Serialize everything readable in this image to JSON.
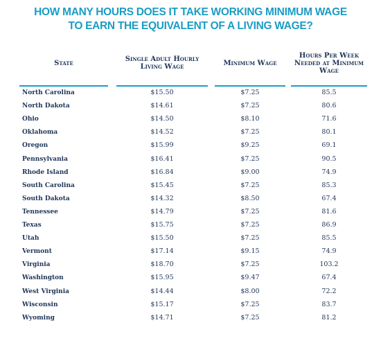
{
  "header": {
    "title_lines": [
      "HOW MANY HOURS DOES IT TAKE WORKING MINIMUM WAGE",
      "TO EARN THE EQUIVALENT OF A LIVING WAGE?"
    ]
  },
  "table": {
    "columns": [
      "State",
      "Single Adult Hourly Living Wage",
      "Minimum Wage",
      "Hours Per Week Needed at Minimum Wage"
    ],
    "rows": [
      [
        "North Carolina",
        "$15.50",
        "$7.25",
        "85.5"
      ],
      [
        "North Dakota",
        "$14.61",
        "$7.25",
        "80.6"
      ],
      [
        "Ohio",
        "$14.50",
        "$8.10",
        "71.6"
      ],
      [
        "Oklahoma",
        "$14.52",
        "$7.25",
        "80.1"
      ],
      [
        "Oregon",
        "$15.99",
        "$9.25",
        "69.1"
      ],
      [
        "Pennsylvania",
        "$16.41",
        "$7.25",
        "90.5"
      ],
      [
        "Rhode Island",
        "$16.84",
        "$9.00",
        "74.9"
      ],
      [
        "South Carolina",
        "$15.45",
        "$7.25",
        "85.3"
      ],
      [
        "South Dakota",
        "$14.32",
        "$8.50",
        "67.4"
      ],
      [
        "Tennessee",
        "$14.79",
        "$7.25",
        "81.6"
      ],
      [
        "Texas",
        "$15.75",
        "$7.25",
        "86.9"
      ],
      [
        "Utah",
        "$15.50",
        "$7.25",
        "85.5"
      ],
      [
        "Vermont",
        "$17.14",
        "$9.15",
        "74.9"
      ],
      [
        "Virginia",
        "$18.70",
        "$7.25",
        "103.2"
      ],
      [
        "Washington",
        "$15.95",
        "$9.47",
        "67.4"
      ],
      [
        "West Virginia",
        "$14.44",
        "$8.00",
        "72.2"
      ],
      [
        "Wisconsin",
        "$15.17",
        "$7.25",
        "83.7"
      ],
      [
        "Wyoming",
        "$14.71",
        "$7.25",
        "81.2"
      ]
    ]
  }
}
